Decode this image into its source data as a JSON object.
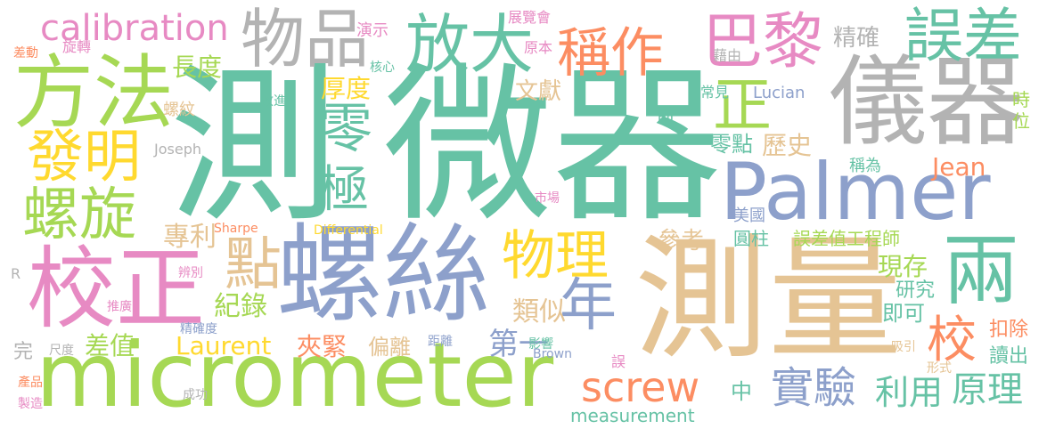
{
  "colors": {
    "green": "#66c2a5",
    "orange": "#fc8d62",
    "blue": "#8da0cb",
    "pink": "#e78ac3",
    "lime": "#a6d854",
    "yellow": "#ffd92f",
    "tan": "#e5c494",
    "gray": "#b3b3b3"
  },
  "words": [
    {
      "text": "微器",
      "color": "green"
    },
    {
      "text": "測",
      "color": "green"
    },
    {
      "text": "micrometer",
      "color": "lime"
    },
    {
      "text": "測量",
      "color": "tan"
    },
    {
      "text": "螺絲",
      "color": "blue"
    },
    {
      "text": "儀器",
      "color": "gray"
    },
    {
      "text": "Palmer",
      "color": "blue"
    },
    {
      "text": "校正",
      "color": "pink"
    },
    {
      "text": "方法",
      "color": "lime"
    },
    {
      "text": "發明",
      "color": "yellow"
    },
    {
      "text": "螺旋",
      "color": "lime"
    },
    {
      "text": "物品",
      "color": "gray"
    },
    {
      "text": "放大",
      "color": "green"
    },
    {
      "text": "稱作",
      "color": "orange"
    },
    {
      "text": "巴黎",
      "color": "pink"
    },
    {
      "text": "誤差",
      "color": "green"
    },
    {
      "text": "calibration",
      "color": "pink"
    },
    {
      "text": "物理",
      "color": "yellow"
    },
    {
      "text": "兩",
      "color": "green"
    },
    {
      "text": "校",
      "color": "orange"
    },
    {
      "text": "正",
      "color": "lime"
    },
    {
      "text": "零",
      "color": "green"
    },
    {
      "text": "極",
      "color": "green"
    },
    {
      "text": "點",
      "color": "tan"
    },
    {
      "text": "年",
      "color": "blue"
    },
    {
      "text": "screw",
      "color": "orange"
    },
    {
      "text": "實驗",
      "color": "blue"
    },
    {
      "text": "利用",
      "color": "green"
    },
    {
      "text": "原理",
      "color": "green"
    },
    {
      "text": "長度",
      "color": "lime"
    },
    {
      "text": "厚度",
      "color": "yellow"
    },
    {
      "text": "文獻",
      "color": "tan"
    },
    {
      "text": "精確",
      "color": "gray"
    },
    {
      "text": "零點",
      "color": "green"
    },
    {
      "text": "歷史",
      "color": "tan"
    },
    {
      "text": "稱為",
      "color": "green"
    },
    {
      "text": "Jean",
      "color": "orange"
    },
    {
      "text": "專利",
      "color": "tan"
    },
    {
      "text": "參考",
      "color": "tan"
    },
    {
      "text": "紀錄",
      "color": "lime"
    },
    {
      "text": "類似",
      "color": "tan"
    },
    {
      "text": "現存",
      "color": "lime"
    },
    {
      "text": "即可",
      "color": "green"
    },
    {
      "text": "研究",
      "color": "green"
    },
    {
      "text": "Laurent",
      "color": "yellow"
    },
    {
      "text": "夾緊",
      "color": "orange"
    },
    {
      "text": "偏離",
      "color": "tan"
    },
    {
      "text": "第一",
      "color": "blue"
    },
    {
      "text": "扣除",
      "color": "orange"
    },
    {
      "text": "讀出",
      "color": "green"
    },
    {
      "text": "差值",
      "color": "lime"
    },
    {
      "text": "中",
      "color": "green"
    },
    {
      "text": "measurement",
      "color": "green"
    },
    {
      "text": "Lucian",
      "color": "blue"
    },
    {
      "text": "時",
      "color": "lime"
    },
    {
      "text": "位",
      "color": "lime"
    },
    {
      "text": "前",
      "color": "green"
    },
    {
      "text": "圓柱",
      "color": "green"
    },
    {
      "text": "美國",
      "color": "blue"
    },
    {
      "text": "誤差值工程師",
      "color": "lime"
    },
    {
      "text": "常見",
      "color": "green"
    },
    {
      "text": "藉由",
      "color": "gray"
    },
    {
      "text": "原本",
      "color": "pink"
    },
    {
      "text": "展覽會",
      "color": "pink"
    },
    {
      "text": "演示",
      "color": "pink"
    },
    {
      "text": "核心",
      "color": "green"
    },
    {
      "text": "改進",
      "color": "green"
    },
    {
      "text": "差動",
      "color": "orange"
    },
    {
      "text": "旋轉",
      "color": "pink"
    },
    {
      "text": "螺紋",
      "color": "tan"
    },
    {
      "text": "Joseph",
      "color": "gray"
    },
    {
      "text": "市場",
      "color": "pink"
    },
    {
      "text": "Sharpe",
      "color": "orange"
    },
    {
      "text": "Differential",
      "color": "yellow"
    },
    {
      "text": "R",
      "color": "gray"
    },
    {
      "text": "辨別",
      "color": "pink"
    },
    {
      "text": "推廣",
      "color": "pink"
    },
    {
      "text": "精確度",
      "color": "blue"
    },
    {
      "text": "完",
      "color": "gray"
    },
    {
      "text": "尺度",
      "color": "gray"
    },
    {
      "text": "距離",
      "color": "blue"
    },
    {
      "text": "影響",
      "color": "green"
    },
    {
      "text": "Brown",
      "color": "blue"
    },
    {
      "text": "誤",
      "color": "pink"
    },
    {
      "text": "吸引",
      "color": "tan"
    },
    {
      "text": "形式",
      "color": "tan"
    },
    {
      "text": "產品",
      "color": "orange"
    },
    {
      "text": "製造",
      "color": "pink"
    },
    {
      "text": "成功",
      "color": "gray"
    }
  ]
}
